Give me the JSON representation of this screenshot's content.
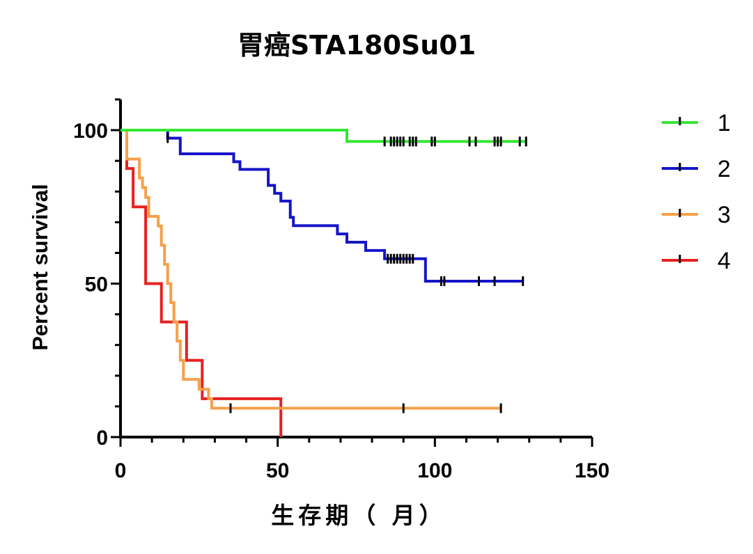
{
  "chart_data": {
    "type": "line",
    "subtype": "kaplan-meier",
    "title": "胃癌STA180Su01",
    "xlabel": "生存期（ 月）",
    "ylabel": "Percent survival",
    "xlim": [
      0,
      150
    ],
    "ylim": [
      0,
      110
    ],
    "xticks": [
      0,
      50,
      100,
      150
    ],
    "xtick_labels": [
      "0",
      "50",
      "100",
      "150"
    ],
    "yticks": [
      0,
      50,
      100
    ],
    "ytick_labels": [
      "0",
      "50",
      "100"
    ],
    "grid": false,
    "legend_position": "right",
    "series": [
      {
        "name": "1",
        "color": "#33e833",
        "steps": [
          [
            0,
            100
          ],
          [
            72,
            100
          ],
          [
            72,
            96.3
          ],
          [
            129,
            96.3
          ]
        ],
        "censored": [
          84,
          86,
          87,
          88,
          89,
          90,
          92,
          93,
          94,
          99,
          100,
          111,
          113,
          119,
          120,
          121,
          127,
          129
        ]
      },
      {
        "name": "2",
        "color": "#1515c8",
        "steps": [
          [
            0,
            100
          ],
          [
            15,
            100
          ],
          [
            15,
            97.4
          ],
          [
            19,
            97.4
          ],
          [
            19,
            92.3
          ],
          [
            36,
            92.3
          ],
          [
            36,
            89.7
          ],
          [
            38,
            89.7
          ],
          [
            38,
            87.2
          ],
          [
            47,
            87.2
          ],
          [
            47,
            82
          ],
          [
            49,
            82
          ],
          [
            49,
            79.4
          ],
          [
            51,
            79.4
          ],
          [
            51,
            76.9
          ],
          [
            54,
            76.9
          ],
          [
            54,
            71.6
          ],
          [
            55,
            71.6
          ],
          [
            55,
            68.9
          ],
          [
            69,
            68.9
          ],
          [
            69,
            66.2
          ],
          [
            72,
            66.2
          ],
          [
            72,
            63.5
          ],
          [
            78,
            63.5
          ],
          [
            78,
            60.8
          ],
          [
            84,
            60.8
          ],
          [
            84,
            58.1
          ],
          [
            97,
            58.1
          ],
          [
            97,
            50.8
          ],
          [
            128,
            50.8
          ]
        ],
        "censored": [
          15,
          85,
          86,
          87,
          88,
          89,
          90,
          91,
          92,
          93,
          102,
          103,
          114,
          119,
          128
        ]
      },
      {
        "name": "3",
        "color": "#f5a04a",
        "steps": [
          [
            0,
            100
          ],
          [
            2,
            100
          ],
          [
            2,
            90.6
          ],
          [
            6,
            90.6
          ],
          [
            6,
            84.4
          ],
          [
            7,
            84.4
          ],
          [
            7,
            81.3
          ],
          [
            8,
            81.3
          ],
          [
            8,
            78.1
          ],
          [
            9,
            78.1
          ],
          [
            9,
            71.9
          ],
          [
            12,
            71.9
          ],
          [
            12,
            68.8
          ],
          [
            13,
            68.8
          ],
          [
            13,
            62.5
          ],
          [
            14,
            62.5
          ],
          [
            14,
            56.3
          ],
          [
            15,
            56.3
          ],
          [
            15,
            50
          ],
          [
            16,
            50
          ],
          [
            16,
            43.8
          ],
          [
            17,
            43.8
          ],
          [
            17,
            37.5
          ],
          [
            18,
            37.5
          ],
          [
            18,
            31.3
          ],
          [
            19,
            31.3
          ],
          [
            19,
            25
          ],
          [
            20,
            25
          ],
          [
            20,
            18.8
          ],
          [
            25,
            18.8
          ],
          [
            25,
            15.6
          ],
          [
            28,
            15.6
          ],
          [
            28,
            12.5
          ],
          [
            29,
            12.5
          ],
          [
            29,
            9.4
          ],
          [
            121,
            9.4
          ]
        ],
        "censored": [
          35,
          90,
          121
        ]
      },
      {
        "name": "4",
        "color": "#e82020",
        "steps": [
          [
            0,
            100
          ],
          [
            2,
            100
          ],
          [
            2,
            87.5
          ],
          [
            4,
            87.5
          ],
          [
            4,
            75
          ],
          [
            8,
            75
          ],
          [
            8,
            50
          ],
          [
            13,
            50
          ],
          [
            13,
            37.5
          ],
          [
            21,
            37.5
          ],
          [
            21,
            25
          ],
          [
            26,
            25
          ],
          [
            26,
            12.5
          ],
          [
            51,
            12.5
          ],
          [
            51,
            0
          ]
        ],
        "censored": []
      }
    ]
  }
}
